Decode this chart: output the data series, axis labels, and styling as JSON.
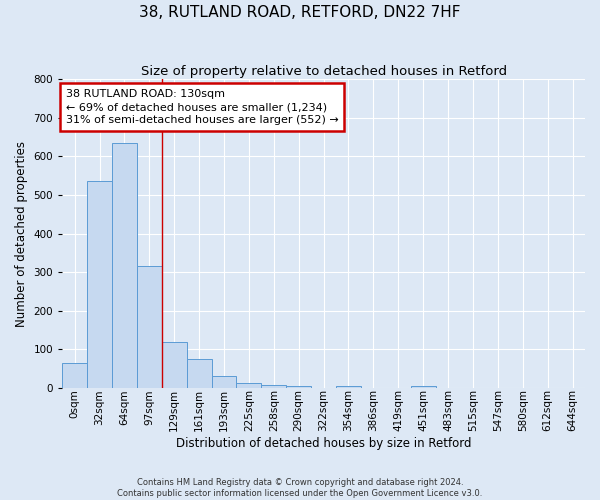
{
  "title": "38, RUTLAND ROAD, RETFORD, DN22 7HF",
  "subtitle": "Size of property relative to detached houses in Retford",
  "xlabel": "Distribution of detached houses by size in Retford",
  "ylabel": "Number of detached properties",
  "bar_labels": [
    "0sqm",
    "32sqm",
    "64sqm",
    "97sqm",
    "129sqm",
    "161sqm",
    "193sqm",
    "225sqm",
    "258sqm",
    "290sqm",
    "322sqm",
    "354sqm",
    "386sqm",
    "419sqm",
    "451sqm",
    "483sqm",
    "515sqm",
    "547sqm",
    "580sqm",
    "612sqm",
    "644sqm"
  ],
  "bar_values": [
    65,
    535,
    635,
    315,
    120,
    75,
    32,
    12,
    8,
    5,
    0,
    5,
    0,
    0,
    5,
    0,
    0,
    0,
    0,
    0,
    0
  ],
  "bar_color": "#c6d9f0",
  "bar_edge_color": "#5b9bd5",
  "ylim": [
    0,
    800
  ],
  "yticks": [
    0,
    100,
    200,
    300,
    400,
    500,
    600,
    700,
    800
  ],
  "property_line_x": 4,
  "property_line_color": "#cc0000",
  "annotation_title": "38 RUTLAND ROAD: 130sqm",
  "annotation_line1": "← 69% of detached houses are smaller (1,234)",
  "annotation_line2": "31% of semi-detached houses are larger (552) →",
  "annotation_box_color": "#cc0000",
  "footer1": "Contains HM Land Registry data © Crown copyright and database right 2024.",
  "footer2": "Contains public sector information licensed under the Open Government Licence v3.0.",
  "background_color": "#dde8f5",
  "grid_color": "#ffffff",
  "title_fontsize": 11,
  "subtitle_fontsize": 9.5,
  "axis_label_fontsize": 8.5,
  "tick_fontsize": 7.5,
  "annotation_fontsize": 8,
  "footer_fontsize": 6
}
